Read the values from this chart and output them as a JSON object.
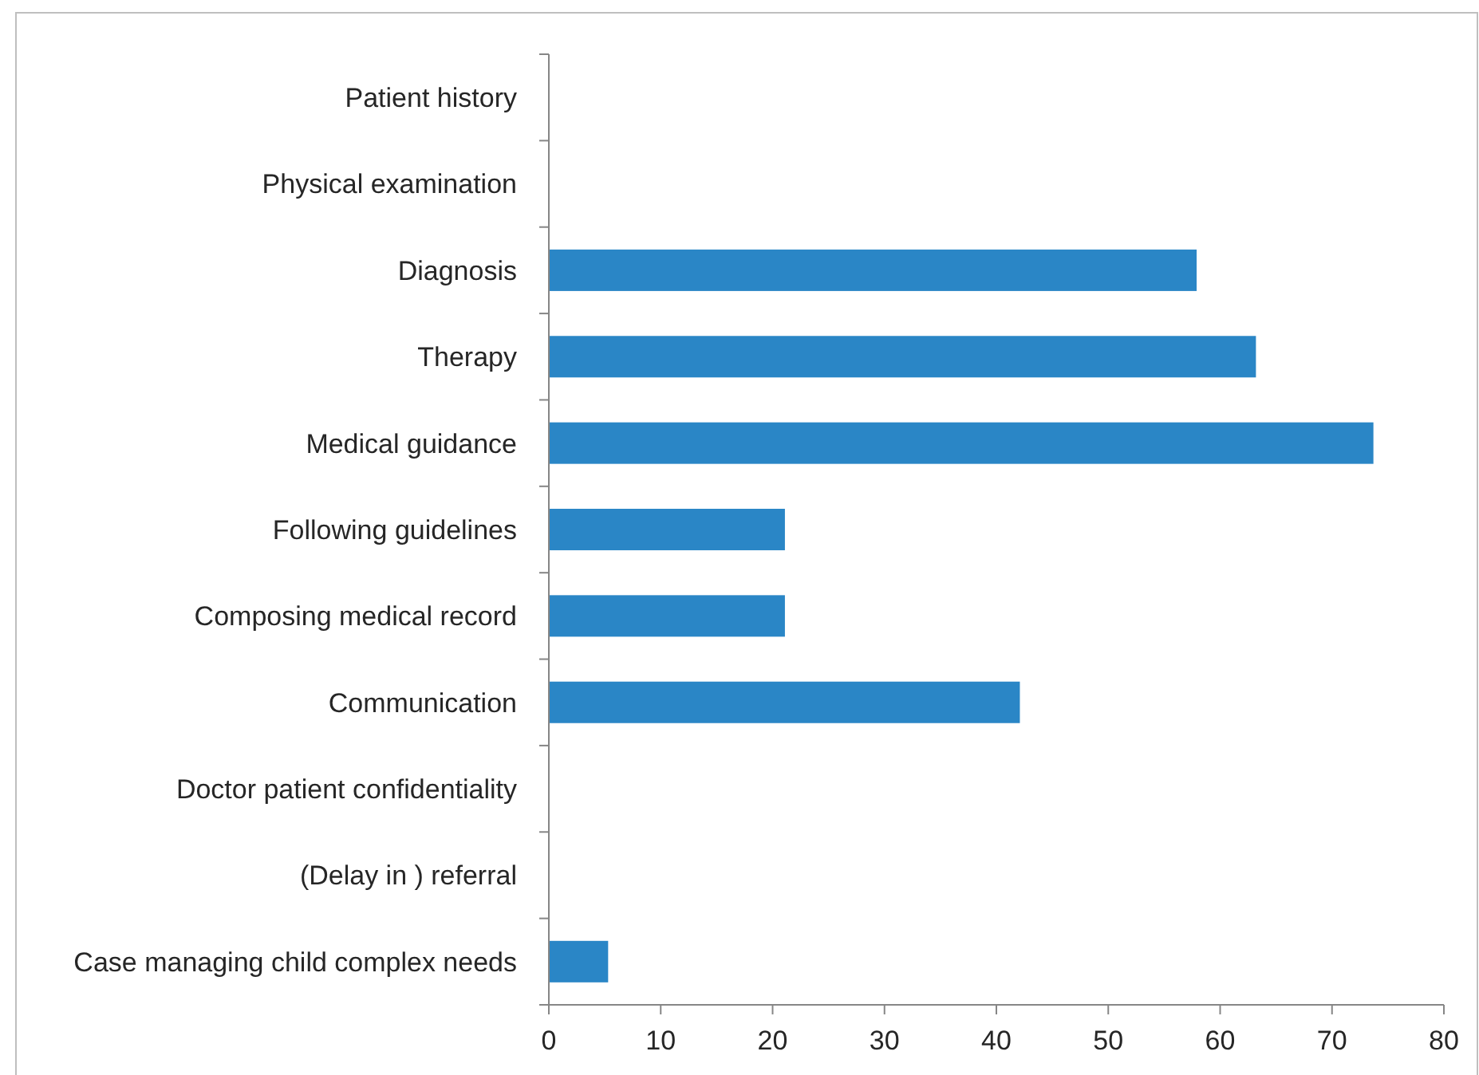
{
  "chart_data": {
    "type": "bar",
    "orientation": "horizontal",
    "categories": [
      "Patient history",
      "Physical examination",
      "Diagnosis",
      "Therapy",
      "Medical guidance",
      "Following guidelines",
      "Composing medical record",
      "Communication",
      "Doctor patient confidentiality",
      "(Delay in ) referral",
      "Case managing child complex needs"
    ],
    "values": [
      0,
      0,
      57.9,
      63.2,
      73.7,
      21.1,
      21.1,
      42.1,
      0,
      0,
      5.3
    ],
    "color": "#2a86c6",
    "xlim": [
      0,
      80
    ],
    "xticks": [
      0,
      10,
      20,
      30,
      40,
      50,
      60,
      70,
      80
    ],
    "grid": false
  }
}
